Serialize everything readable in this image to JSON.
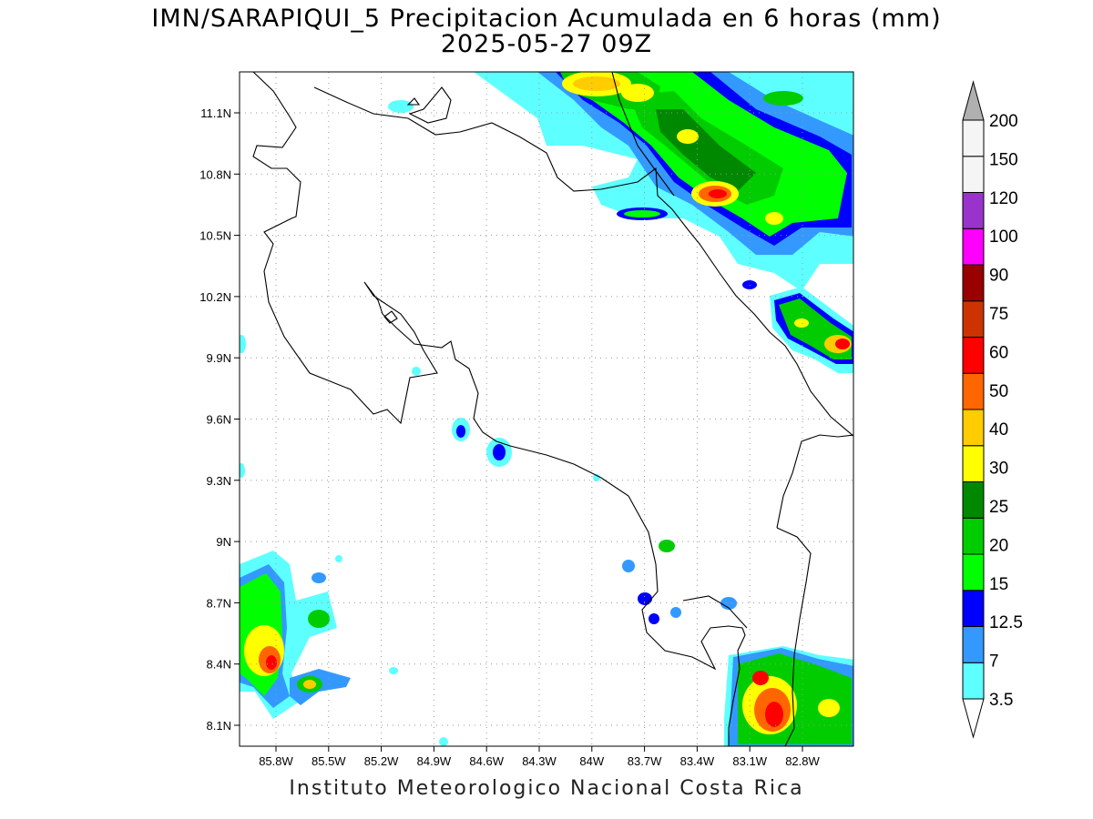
{
  "header": {
    "title_line1": "IMN/SARAPIQUI_5 Precipitacion Acumulada en 6 horas (mm)",
    "title_line2": "2025-05-27 09Z"
  },
  "footer": {
    "credit": "Instituto Meteorologico Nacional Costa Rica"
  },
  "map": {
    "lat_labels": [
      "11.1N",
      "10.8N",
      "10.5N",
      "10.2N",
      "9.9N",
      "9.6N",
      "9.3N",
      "9N",
      "8.7N",
      "8.4N",
      "8.1N"
    ],
    "lon_labels": [
      "85.8W",
      "85.5W",
      "85.2W",
      "84.9W",
      "84.6W",
      "84.3W",
      "84W",
      "83.7W",
      "83.4W",
      "83.1W",
      "82.8W"
    ],
    "gridlines": true
  },
  "colorbar": {
    "levels": [
      "3.5",
      "7",
      "12.5",
      "15",
      "20",
      "25",
      "30",
      "40",
      "50",
      "60",
      "75",
      "90",
      "100",
      "120",
      "150",
      "200"
    ],
    "colors": [
      "#5effff",
      "#3399ff",
      "#0000ff",
      "#00ff00",
      "#00cc00",
      "#008800",
      "#ffff00",
      "#ffcc00",
      "#ff6600",
      "#ff0000",
      "#cc3300",
      "#990000",
      "#ff00ff",
      "#9933cc",
      "#f5f5f5",
      "#b0b0b0"
    ]
  }
}
